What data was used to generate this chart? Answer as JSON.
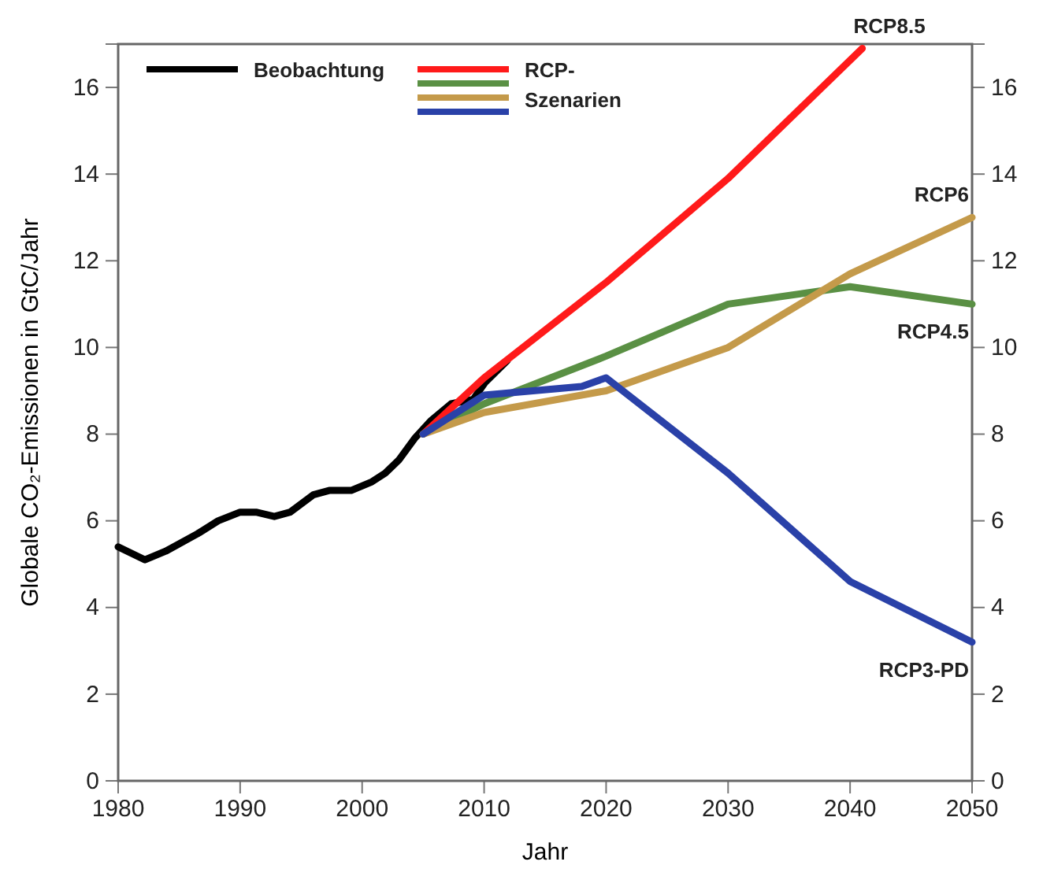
{
  "chart_data": {
    "type": "line",
    "xlabel": "Jahr",
    "ylabel": "Globale CO₂-Emissionen in GtC/Jahr",
    "legend_title": "RCP-\nSzenarien",
    "legend": "top left",
    "grid": false,
    "line_style": "solid",
    "marker": "none",
    "xlim": [
      1980,
      2050
    ],
    "xticks": [
      1980,
      1990,
      2000,
      2010,
      2020,
      2030,
      2040,
      2050
    ],
    "ylim": [
      0,
      17
    ],
    "yticks": [
      0,
      2,
      4,
      6,
      8,
      10,
      12,
      14,
      16
    ],
    "y2lim": [
      0,
      17
    ],
    "y2ticks": [
      0,
      2,
      4,
      6,
      8,
      10,
      12,
      14,
      16
    ],
    "series": [
      {
        "name": "Beobachtung",
        "color": "#000000",
        "x": [
          1980,
          1982.2,
          1983.9,
          1986.5,
          1988.2,
          1990,
          1991.3,
          1992.8,
          1994.1,
          1996,
          1997.3,
          1999.1,
          2000.8,
          2001.9,
          2003,
          2004.3,
          2005.6,
          2007.3,
          2009.1,
          2010.1,
          2011.9
        ],
        "values": [
          5.4,
          5.1,
          5.3,
          5.7,
          6.0,
          6.2,
          6.2,
          6.1,
          6.2,
          6.6,
          6.7,
          6.7,
          6.9,
          7.1,
          7.4,
          7.9,
          8.3,
          8.7,
          8.8,
          9.2,
          9.7
        ]
      },
      {
        "name": "RCP8.5",
        "color": "#ff1a1a",
        "x": [
          2005,
          2010,
          2020,
          2030,
          2041
        ],
        "values": [
          8.0,
          9.3,
          11.5,
          13.9,
          16.9
        ]
      },
      {
        "name": "RCP4.5",
        "color": "#5a9044",
        "x": [
          2005,
          2010,
          2020,
          2030,
          2040,
          2050
        ],
        "values": [
          8.0,
          8.7,
          9.8,
          11.0,
          11.4,
          11.0
        ]
      },
      {
        "name": "RCP6",
        "color": "#c49a4a",
        "x": [
          2005,
          2010,
          2020,
          2030,
          2040,
          2050
        ],
        "values": [
          8.0,
          8.5,
          9.0,
          10.0,
          11.7,
          13.0
        ]
      },
      {
        "name": "RCP3-PD",
        "color": "#2a41a8",
        "x": [
          2005,
          2010,
          2018,
          2020,
          2030,
          2040,
          2050
        ],
        "values": [
          8.0,
          8.9,
          9.1,
          9.3,
          7.1,
          4.6,
          3.2
        ]
      }
    ]
  }
}
